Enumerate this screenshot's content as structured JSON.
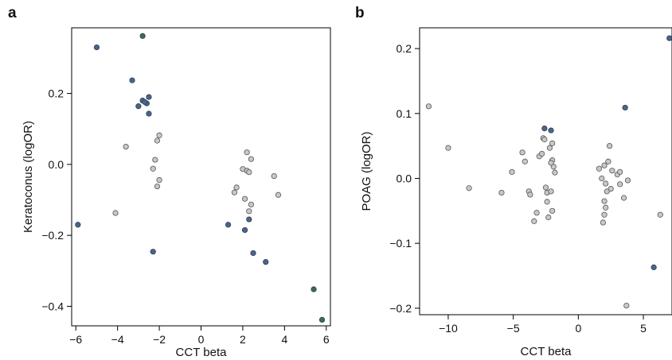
{
  "panel_labels": [
    "a",
    "b"
  ],
  "colors": {
    "significant": "#4a6587",
    "significant_edge": "#2c3f5a",
    "significant_green": "#3f6b52",
    "nonsignificant": "#c8c8c8",
    "nonsignificant_edge": "#555555",
    "axis": "#000000"
  },
  "chart_data": [
    {
      "type": "scatter",
      "panel": "a",
      "xlabel": "CCT beta",
      "ylabel": "Keratoconus (logOR)",
      "xlim": [
        -6.2,
        6.2
      ],
      "ylim": [
        -0.455,
        0.385
      ],
      "xticks": [
        -6,
        -4,
        -2,
        0,
        2,
        4,
        6
      ],
      "xtick_labels": [
        "−6",
        "−4",
        "−2",
        "0",
        "2",
        "4",
        "6"
      ],
      "yticks": [
        -0.4,
        -0.2,
        0.0,
        0.2
      ],
      "ytick_labels": [
        "−0.4",
        "−0.2",
        "0.0",
        "0.2"
      ],
      "grid": false,
      "series": [
        {
          "group": "significant",
          "points": [
            [
              -5.0,
              0.33
            ],
            [
              -3.3,
              0.237
            ],
            [
              -2.8,
              0.362
            ],
            [
              -3.0,
              0.164
            ],
            [
              -2.8,
              0.18
            ],
            [
              -2.6,
              0.172
            ],
            [
              -2.5,
              0.19
            ],
            [
              -2.5,
              0.143
            ],
            [
              -2.7,
              0.176
            ],
            [
              -5.9,
              -0.17
            ],
            [
              -2.3,
              -0.246
            ],
            [
              1.3,
              -0.17
            ],
            [
              2.3,
              -0.155
            ],
            [
              2.1,
              -0.185
            ],
            [
              2.5,
              -0.25
            ],
            [
              3.1,
              -0.275
            ],
            [
              5.4,
              -0.352
            ],
            [
              5.8,
              -0.438
            ]
          ]
        },
        {
          "group": "nonsignificant",
          "points": [
            [
              -3.6,
              0.05
            ],
            [
              -4.1,
              -0.137
            ],
            [
              -2.0,
              0.082
            ],
            [
              -2.1,
              0.067
            ],
            [
              -2.2,
              0.013
            ],
            [
              -2.3,
              -0.012
            ],
            [
              -2.0,
              -0.044
            ],
            [
              -2.1,
              -0.062
            ],
            [
              2.2,
              0.034
            ],
            [
              2.4,
              0.015
            ],
            [
              2.0,
              -0.013
            ],
            [
              2.2,
              -0.018
            ],
            [
              2.3,
              -0.022
            ],
            [
              1.7,
              -0.065
            ],
            [
              1.6,
              -0.079
            ],
            [
              2.1,
              -0.097
            ],
            [
              2.4,
              -0.113
            ],
            [
              2.3,
              -0.132
            ],
            [
              3.5,
              -0.033
            ],
            [
              3.7,
              -0.086
            ]
          ]
        }
      ]
    },
    {
      "type": "scatter",
      "panel": "b",
      "xlabel": "CCT beta",
      "ylabel": "POAG (logOR)",
      "xlim": [
        -12.2,
        7.2
      ],
      "ylim": [
        -0.21,
        0.232
      ],
      "xticks": [
        -10,
        -5,
        0,
        5
      ],
      "xtick_labels": [
        "−10",
        "−5",
        "0",
        "5"
      ],
      "yticks": [
        -0.2,
        -0.1,
        0.0,
        0.1,
        0.2
      ],
      "ytick_labels": [
        "−0.2",
        "−0.1",
        "0.0",
        "0.1",
        "0.2"
      ],
      "grid": false,
      "series": [
        {
          "group": "significant",
          "points": [
            [
              3.6,
              0.109
            ],
            [
              7.0,
              0.216
            ],
            [
              5.8,
              -0.137
            ],
            [
              -2.6,
              0.077
            ],
            [
              -2.1,
              0.074
            ]
          ]
        },
        {
          "group": "nonsignificant",
          "points": [
            [
              -11.5,
              0.111
            ],
            [
              -10.0,
              0.047
            ],
            [
              -8.4,
              -0.015
            ],
            [
              -5.9,
              -0.022
            ],
            [
              -5.1,
              0.01
            ],
            [
              -4.3,
              0.04
            ],
            [
              -4.1,
              0.026
            ],
            [
              -3.8,
              -0.02
            ],
            [
              -3.7,
              -0.025
            ],
            [
              -3.4,
              -0.066
            ],
            [
              -3.2,
              -0.053
            ],
            [
              -3.0,
              0.034
            ],
            [
              -2.8,
              0.038
            ],
            [
              -2.7,
              0.062
            ],
            [
              -2.6,
              0.06
            ],
            [
              -2.5,
              -0.014
            ],
            [
              -2.4,
              -0.022
            ],
            [
              -2.4,
              -0.036
            ],
            [
              -2.2,
              0.047
            ],
            [
              -2.0,
              0.054
            ],
            [
              -2.0,
              0.028
            ],
            [
              -1.9,
              0.018
            ],
            [
              -1.8,
              0.009
            ],
            [
              -2.1,
              0.024
            ],
            [
              -2.1,
              -0.02
            ],
            [
              -2.0,
              -0.05
            ],
            [
              -2.3,
              -0.06
            ],
            [
              1.6,
              0.015
            ],
            [
              1.8,
              0.0
            ],
            [
              2.0,
              0.02
            ],
            [
              2.1,
              -0.008
            ],
            [
              2.2,
              -0.02
            ],
            [
              2.0,
              -0.035
            ],
            [
              2.1,
              -0.045
            ],
            [
              2.0,
              -0.056
            ],
            [
              1.9,
              -0.068
            ],
            [
              2.3,
              0.026
            ],
            [
              2.4,
              0.05
            ],
            [
              2.5,
              -0.016
            ],
            [
              2.6,
              0.012
            ],
            [
              3.0,
              0.006
            ],
            [
              3.2,
              0.01
            ],
            [
              3.2,
              -0.009
            ],
            [
              3.5,
              -0.03
            ],
            [
              3.8,
              -0.003
            ],
            [
              6.3,
              -0.056
            ],
            [
              3.7,
              -0.196
            ]
          ]
        }
      ]
    }
  ]
}
